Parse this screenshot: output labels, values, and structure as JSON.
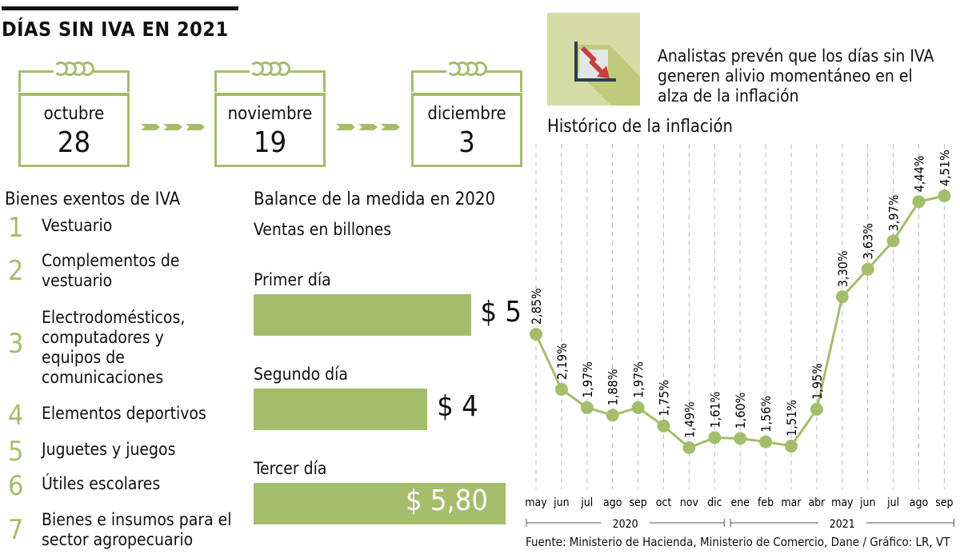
{
  "header": {
    "title": "DÍAS SIN IVA EN 2021"
  },
  "calendar": [
    {
      "month": "octubre",
      "day": "28"
    },
    {
      "month": "noviembre",
      "day": "19"
    },
    {
      "month": "diciembre",
      "day": "3"
    }
  ],
  "exempt": {
    "title": "Bienes exentos de IVA",
    "items": [
      {
        "n": "1",
        "label": "Vestuario"
      },
      {
        "n": "2",
        "label": "Complementos de vestuario"
      },
      {
        "n": "3",
        "label": "Electrodomésticos, computadores y equipos de comunicaciones"
      },
      {
        "n": "4",
        "label": "Elementos deportivos"
      },
      {
        "n": "5",
        "label": "Juguetes y juegos"
      },
      {
        "n": "6",
        "label": "Útiles escolares"
      },
      {
        "n": "7",
        "label": "Bienes e insumos para el sector agropecuario"
      }
    ]
  },
  "note": "Analistas prevén que los días sin IVA generen alivio momentáneo en el alza de la inflación",
  "icon": "chart-down-icon",
  "colors": {
    "accent": "#a4bd6b",
    "icon_bg": "#d6dca6",
    "arrow": "#c8403c"
  },
  "source": "Fuente: Ministerio de Hacienda, Ministerio de Comercio, Dane / Gráfico: LR, VT",
  "chart_data": [
    {
      "type": "bar",
      "orientation": "horizontal",
      "title": "Balance de la medida en 2020",
      "subtitle": "Ventas en billones",
      "categories": [
        "Primer día",
        "Segundo día",
        "Tercer día"
      ],
      "values": [
        5,
        4,
        5.8
      ],
      "labels": [
        "$ 5",
        "$ 4",
        "$ 5,80"
      ]
    },
    {
      "type": "line",
      "title": "Histórico de la inflación",
      "categories": [
        "may",
        "jun",
        "jul",
        "ago",
        "sep",
        "oct",
        "nov",
        "dic",
        "ene",
        "feb",
        "mar",
        "abr",
        "may",
        "jun",
        "jul",
        "ago",
        "sep"
      ],
      "groups": [
        {
          "label": "2020",
          "from": 0,
          "to": 7
        },
        {
          "label": "2021",
          "from": 8,
          "to": 16
        }
      ],
      "values": [
        2.85,
        2.19,
        1.97,
        1.88,
        1.97,
        1.75,
        1.49,
        1.61,
        1.6,
        1.56,
        1.51,
        1.95,
        3.3,
        3.63,
        3.97,
        4.44,
        4.51
      ],
      "labels": [
        "2,85%",
        "2,19%",
        "1,97%",
        "1,88%",
        "1,97%",
        "1,75%",
        "1,49%",
        "1,61%",
        "1,60%",
        "1,56%",
        "1,51%",
        "1,95%",
        "3,30%",
        "3,63%",
        "3,97%",
        "4,44%",
        "4,51%"
      ],
      "grid": "vertical dashed"
    }
  ]
}
